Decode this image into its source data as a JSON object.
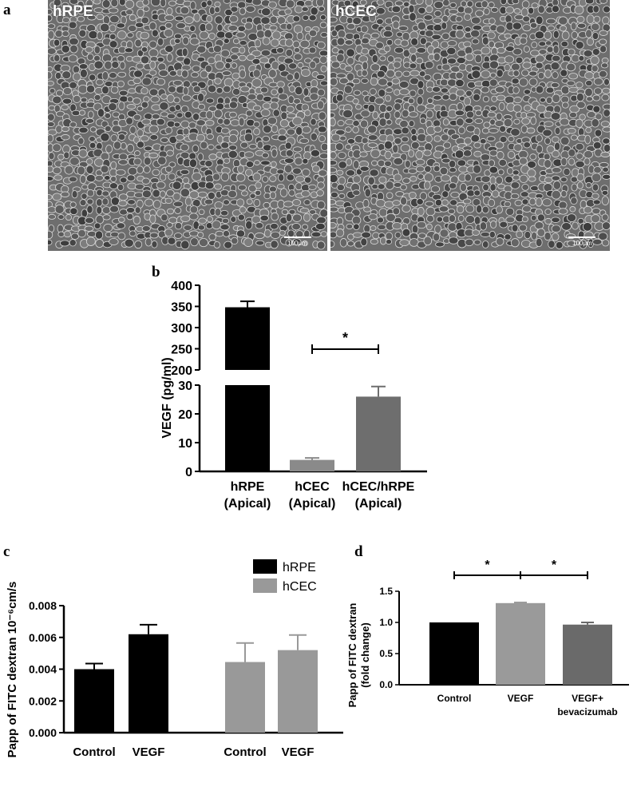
{
  "panels": {
    "a": "a",
    "b": "b",
    "c": "c",
    "d": "d"
  },
  "micrographs": [
    {
      "label": "hRPE",
      "scale_text": "100μm"
    },
    {
      "label": "hCEC",
      "scale_text": "100μm"
    }
  ],
  "chart_data": [
    {
      "panel": "b",
      "type": "bar",
      "ylabel": "VEGF (pg/ml)",
      "categories": [
        [
          "hRPE",
          "(Apical)"
        ],
        [
          "hCEC",
          "(Apical)"
        ],
        [
          "hCEC/hRPE",
          "(Apical)"
        ]
      ],
      "values": [
        348,
        4,
        26
      ],
      "errors": [
        14,
        0.7,
        3.5
      ],
      "bar_colors": [
        "#000000",
        "#8a8a8a",
        "#6e6e6e"
      ],
      "axis_break": {
        "lower": [
          0,
          30
        ],
        "upper": [
          200,
          400
        ]
      },
      "yticks_lower": [
        "0",
        "10",
        "20",
        "30"
      ],
      "yticks_upper": [
        "200",
        "250",
        "300",
        "350",
        "400"
      ],
      "significance": [
        {
          "from": 1,
          "to": 2,
          "label": "*"
        }
      ]
    },
    {
      "panel": "c",
      "type": "bar",
      "ylabel": "Papp of FITC dextran 10⁻⁶cm/s",
      "ylim": [
        0,
        0.008
      ],
      "yticks": [
        "0.000",
        "0.002",
        "0.004",
        "0.006",
        "0.008"
      ],
      "groups": [
        {
          "series": "hRPE",
          "color": "#000000",
          "categories": [
            "Control",
            "VEGF"
          ],
          "values": [
            0.004,
            0.0062
          ],
          "errors": [
            0.00035,
            0.0006
          ]
        },
        {
          "series": "hCEC",
          "color": "#999999",
          "categories": [
            "Control",
            "VEGF"
          ],
          "values": [
            0.00445,
            0.0052
          ],
          "errors": [
            0.0012,
            0.00095
          ]
        }
      ],
      "legend": [
        "hRPE",
        "hCEC"
      ],
      "legend_position": "top-right"
    },
    {
      "panel": "d",
      "type": "bar",
      "ylabel_lines": [
        "Papp of FITC dextran",
        "(fold change)"
      ],
      "ylim": [
        0,
        1.5
      ],
      "yticks": [
        "0.0",
        "0.5",
        "1.0",
        "1.5"
      ],
      "categories": [
        [
          "Control"
        ],
        [
          "VEGF"
        ],
        [
          "VEGF+",
          "bevacizumab"
        ]
      ],
      "values": [
        1.0,
        1.31,
        0.965
      ],
      "errors": [
        0,
        0.01,
        0.035
      ],
      "bar_colors": [
        "#000000",
        "#9a9a9a",
        "#6a6a6a"
      ],
      "significance": [
        {
          "from": 0,
          "to": 1,
          "label": "*"
        },
        {
          "from": 1,
          "to": 2,
          "label": "*"
        }
      ]
    }
  ]
}
